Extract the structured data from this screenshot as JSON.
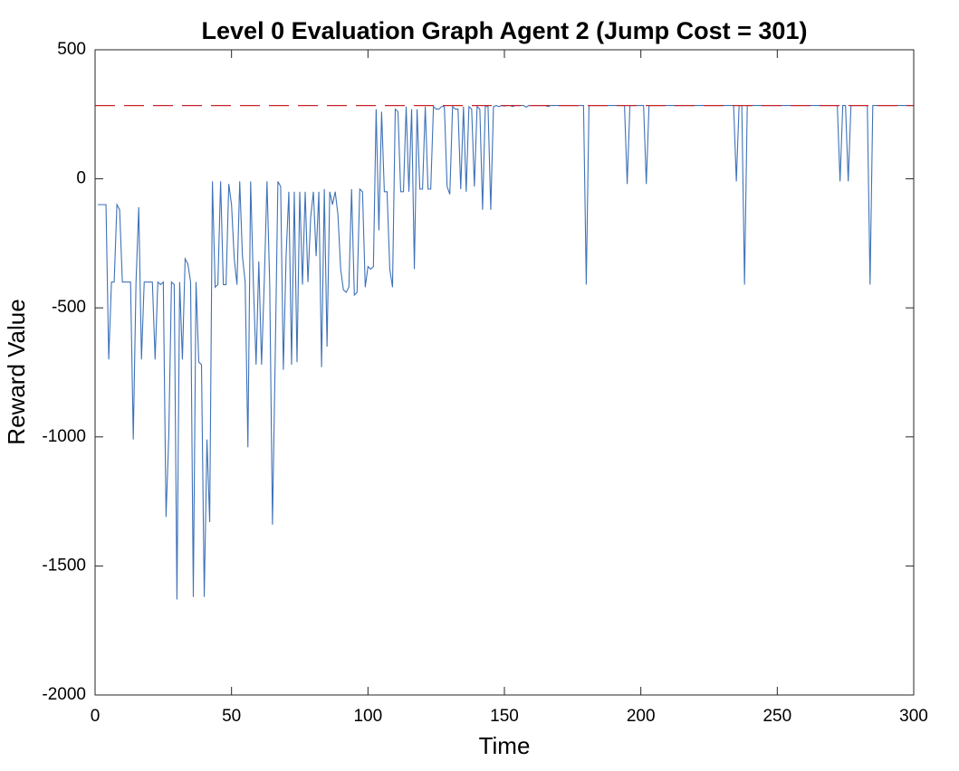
{
  "chart_data": {
    "type": "line",
    "title": "Level 0 Evaluation Graph Agent 2 (Jump Cost = 301)",
    "xlabel": "Time",
    "ylabel": "Reward Value",
    "xlim": [
      0,
      300
    ],
    "xticks": [
      0,
      50,
      100,
      150,
      200,
      250,
      300
    ],
    "ylim": [
      -2000,
      500
    ],
    "yticks": [
      -2000,
      -1500,
      -1000,
      -500,
      0,
      500
    ],
    "grid": false,
    "hline": {
      "value": 284,
      "color": "#c8242b",
      "dash": true
    },
    "x": [
      1,
      2,
      3,
      4,
      5,
      6,
      7,
      8,
      9,
      10,
      11,
      12,
      13,
      14,
      15,
      16,
      17,
      18,
      19,
      20,
      21,
      22,
      23,
      24,
      25,
      26,
      27,
      28,
      29,
      30,
      31,
      32,
      33,
      34,
      35,
      36,
      37,
      38,
      39,
      40,
      41,
      42,
      43,
      44,
      45,
      46,
      47,
      48,
      49,
      50,
      51,
      52,
      53,
      54,
      55,
      56,
      57,
      58,
      59,
      60,
      61,
      62,
      63,
      64,
      65,
      66,
      67,
      68,
      69,
      70,
      71,
      72,
      73,
      74,
      75,
      76,
      77,
      78,
      79,
      80,
      81,
      82,
      83,
      84,
      85,
      86,
      87,
      88,
      89,
      90,
      91,
      92,
      93,
      94,
      95,
      96,
      97,
      98,
      99,
      100,
      101,
      102,
      103,
      104,
      105,
      106,
      107,
      108,
      109,
      110,
      111,
      112,
      113,
      114,
      115,
      116,
      117,
      118,
      119,
      120,
      121,
      122,
      123,
      124,
      125,
      126,
      127,
      128,
      129,
      130,
      131,
      132,
      133,
      134,
      135,
      136,
      137,
      138,
      139,
      140,
      141,
      142,
      143,
      144,
      145,
      146,
      147,
      148,
      149,
      150,
      151,
      152,
      153,
      154,
      155,
      156,
      157,
      158,
      159,
      160,
      161,
      162,
      163,
      164,
      165,
      166,
      167,
      168,
      169,
      170,
      171,
      172,
      173,
      174,
      175,
      176,
      177,
      178,
      179,
      180,
      181,
      182,
      183,
      184,
      185,
      186,
      187,
      188,
      189,
      190,
      191,
      192,
      193,
      194,
      195,
      196,
      197,
      198,
      199,
      200,
      201,
      202,
      203,
      204,
      205,
      206,
      207,
      208,
      209,
      210,
      211,
      212,
      213,
      214,
      215,
      216,
      217,
      218,
      219,
      220,
      221,
      222,
      223,
      224,
      225,
      226,
      227,
      228,
      229,
      230,
      231,
      232,
      233,
      234,
      235,
      236,
      237,
      238,
      239,
      240,
      241,
      242,
      243,
      244,
      245,
      246,
      247,
      248,
      249,
      250,
      251,
      252,
      253,
      254,
      255,
      256,
      257,
      258,
      259,
      260,
      261,
      262,
      263,
      264,
      265,
      266,
      267,
      268,
      269,
      270,
      271,
      272,
      273,
      274,
      275,
      276,
      277,
      278,
      279,
      280,
      281,
      282,
      283,
      284,
      285,
      286,
      287,
      288,
      289,
      290,
      291,
      292,
      293,
      294,
      295,
      296,
      297,
      298,
      299,
      300
    ],
    "series": [
      {
        "color": "#3f72b8",
        "values": [
          -100,
          -100,
          -100,
          -100,
          -700,
          -400,
          -400,
          -100,
          -120,
          -400,
          -400,
          -400,
          -400,
          -1010,
          -400,
          -110,
          -700,
          -400,
          -400,
          -400,
          -400,
          -700,
          -400,
          -410,
          -400,
          -1310,
          -1000,
          -400,
          -410,
          -1630,
          -400,
          -700,
          -310,
          -330,
          -400,
          -1620,
          -400,
          -710,
          -720,
          -1620,
          -1010,
          -1330,
          -10,
          -420,
          -410,
          -10,
          -410,
          -410,
          -20,
          -100,
          -310,
          -410,
          -10,
          -300,
          -400,
          -1040,
          -10,
          -400,
          -720,
          -320,
          -720,
          -400,
          -10,
          -410,
          -1340,
          -700,
          -10,
          -30,
          -740,
          -300,
          -50,
          -720,
          -50,
          -710,
          -50,
          -410,
          -50,
          -400,
          -150,
          -50,
          -300,
          -50,
          -730,
          -40,
          -650,
          -50,
          -100,
          -50,
          -140,
          -350,
          -430,
          -440,
          -420,
          -40,
          -450,
          -440,
          -40,
          -50,
          -420,
          -340,
          -350,
          -340,
          270,
          -200,
          260,
          -50,
          -50,
          -350,
          -420,
          270,
          260,
          -50,
          -50,
          280,
          -50,
          270,
          -350,
          270,
          -40,
          -40,
          280,
          -40,
          -40,
          280,
          270,
          270,
          280,
          280,
          -30,
          -60,
          280,
          270,
          270,
          -40,
          280,
          -50,
          280,
          270,
          -30,
          280,
          270,
          -120,
          280,
          280,
          -120,
          280,
          284,
          280,
          284,
          282,
          284,
          284,
          280,
          284,
          284,
          284,
          284,
          278,
          284,
          284,
          284,
          284,
          284,
          284,
          284,
          280,
          284,
          284,
          284,
          284,
          284,
          284,
          284,
          284,
          284,
          284,
          284,
          284,
          284,
          -410,
          284,
          284,
          284,
          284,
          284,
          284,
          284,
          284,
          284,
          284,
          284,
          284,
          284,
          284,
          -20,
          284,
          284,
          284,
          284,
          284,
          284,
          -20,
          284,
          284,
          284,
          284,
          284,
          284,
          284,
          284,
          284,
          284,
          284,
          284,
          284,
          284,
          284,
          284,
          284,
          284,
          284,
          284,
          284,
          284,
          284,
          284,
          284,
          284,
          284,
          284,
          284,
          284,
          284,
          284,
          -10,
          284,
          284,
          -410,
          284,
          284,
          284,
          284,
          284,
          284,
          284,
          284,
          284,
          284,
          284,
          284,
          284,
          284,
          284,
          284,
          284,
          284,
          284,
          284,
          284,
          284,
          284,
          284,
          284,
          284,
          284,
          284,
          284,
          284,
          284,
          284,
          284,
          284,
          -10,
          284,
          284,
          -10,
          284,
          284,
          284,
          284,
          284,
          284,
          284,
          -410,
          284,
          284,
          284,
          284,
          284,
          284,
          284,
          284,
          284,
          284,
          284,
          284,
          284,
          284,
          284,
          284
        ]
      }
    ]
  }
}
